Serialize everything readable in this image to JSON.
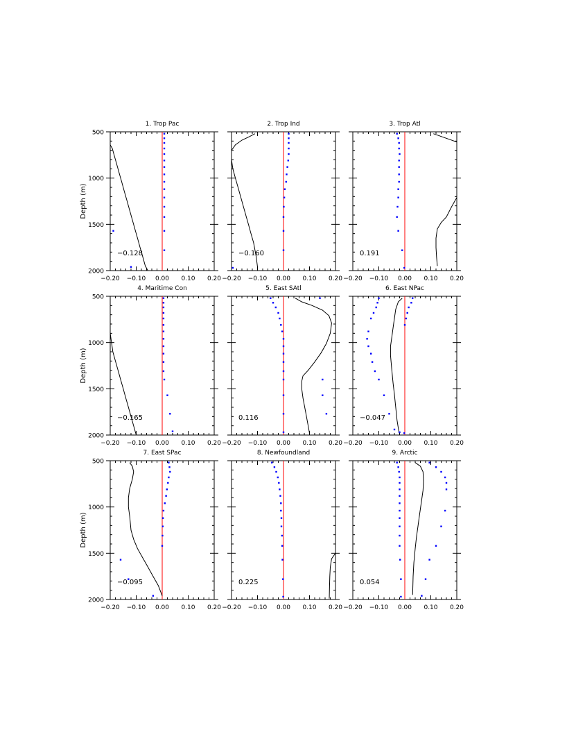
{
  "chart_data": {
    "type": "line",
    "layout": "3x3 small multiples",
    "ylabel": "Depth (m)",
    "y_reversed": true,
    "ylim": [
      500,
      2000
    ],
    "xlim": [
      -0.2,
      0.2
    ],
    "y_ticks": [
      "500",
      "1000",
      "1500",
      "2000"
    ],
    "x_ticks": [
      "−0.20",
      "−0.10",
      "0.00",
      "0.10",
      "0.20"
    ],
    "colors": {
      "line": "#000000",
      "dots": "#0000ff",
      "zero_line": "#ff0000"
    },
    "panels": [
      {
        "title": "1. Trop Pac",
        "value_label": "−0.128",
        "line": {
          "x": [
            -0.2,
            -0.192,
            -0.185,
            -0.175,
            -0.165,
            -0.155,
            -0.145,
            -0.135,
            -0.125,
            -0.115,
            -0.105,
            -0.095,
            -0.085,
            -0.075,
            -0.065,
            -0.055
          ],
          "y": [
            640,
            680,
            750,
            850,
            950,
            1050,
            1150,
            1250,
            1350,
            1450,
            1550,
            1650,
            1750,
            1850,
            1950,
            2000
          ]
        },
        "dots": {
          "x": [
            0.008,
            0.008,
            0.008,
            0.008,
            0.008,
            0.008,
            0.008,
            0.008,
            0.008,
            0.008,
            0.008,
            0.008,
            0.008,
            0.008,
            0.008,
            -0.188,
            -0.12
          ],
          "y": [
            520,
            570,
            620,
            680,
            740,
            810,
            880,
            960,
            1040,
            1120,
            1210,
            1310,
            1420,
            1570,
            1780,
            1570,
            1960
          ]
        }
      },
      {
        "title": "2. Trop Ind",
        "value_label": "−0.160",
        "line": {
          "x": [
            -0.11,
            -0.13,
            -0.16,
            -0.185,
            -0.2,
            -0.2,
            -0.195,
            -0.185,
            -0.175,
            -0.165,
            -0.155,
            -0.145,
            -0.135,
            -0.125,
            -0.115,
            -0.105,
            -0.1
          ],
          "y": [
            520,
            550,
            590,
            640,
            700,
            800,
            900,
            1000,
            1100,
            1200,
            1300,
            1400,
            1500,
            1600,
            1700,
            1850,
            1960
          ]
        },
        "dots": {
          "x": [
            0.02,
            0.02,
            0.02,
            0.02,
            0.02,
            0.018,
            0.015,
            0.012,
            0.01,
            0.005,
            0.003,
            0.001,
            0.0,
            0.0,
            0.0,
            -0.195
          ],
          "y": [
            520,
            570,
            620,
            680,
            740,
            810,
            880,
            960,
            1040,
            1120,
            1210,
            1310,
            1420,
            1570,
            1780,
            1970
          ]
        }
      },
      {
        "title": "3. Trop Atl",
        "value_label": "0.191",
        "line": {
          "x": [
            0.11,
            0.14,
            0.17,
            0.2,
            0.2,
            0.18,
            0.16,
            0.14,
            0.125,
            0.12,
            0.12,
            0.122,
            0.125
          ],
          "y": [
            520,
            550,
            580,
            610,
            1210,
            1310,
            1420,
            1480,
            1550,
            1650,
            1750,
            1850,
            1950
          ]
        },
        "dots": {
          "x": [
            -0.03,
            -0.025,
            -0.022,
            -0.022,
            -0.02,
            -0.022,
            -0.022,
            -0.022,
            -0.022,
            -0.025,
            -0.025,
            -0.028,
            -0.03,
            -0.025,
            -0.01,
            -0.002
          ],
          "y": [
            520,
            570,
            620,
            680,
            740,
            810,
            880,
            960,
            1040,
            1120,
            1210,
            1310,
            1420,
            1570,
            1780,
            1970
          ]
        }
      },
      {
        "title": "4. Maritime Con",
        "value_label": "−0.165",
        "line": {
          "x": [
            -0.2,
            -0.195,
            -0.19,
            -0.18,
            -0.17,
            -0.16,
            -0.15,
            -0.14,
            -0.13,
            -0.12,
            -0.11,
            -0.1
          ],
          "y": [
            900,
            1000,
            1100,
            1200,
            1300,
            1400,
            1500,
            1600,
            1700,
            1800,
            1900,
            2000
          ]
        },
        "dots": {
          "x": [
            0.005,
            0.005,
            0.005,
            0.005,
            0.005,
            0.005,
            0.005,
            0.005,
            0.005,
            0.005,
            0.005,
            0.005,
            0.008,
            0.02,
            0.03,
            0.04
          ],
          "y": [
            520,
            570,
            620,
            680,
            740,
            810,
            880,
            960,
            1040,
            1120,
            1210,
            1310,
            1400,
            1570,
            1770,
            1960
          ]
        }
      },
      {
        "title": "5. East SAtl",
        "value_label": "0.116",
        "line": {
          "x": [
            0.045,
            0.07,
            0.11,
            0.15,
            0.175,
            0.185,
            0.18,
            0.165,
            0.145,
            0.12,
            0.095,
            0.075,
            0.07,
            0.07,
            0.075,
            0.085,
            0.095,
            0.1
          ],
          "y": [
            520,
            560,
            600,
            650,
            710,
            790,
            900,
            1010,
            1110,
            1210,
            1300,
            1360,
            1420,
            1500,
            1600,
            1750,
            1900,
            1980
          ]
        },
        "dots": {
          "x": [
            -0.05,
            -0.04,
            -0.03,
            -0.02,
            -0.015,
            -0.01,
            -0.005,
            0.0,
            0.0,
            0.0,
            0.0,
            0.0,
            0.0,
            0.0,
            0.0,
            0.0,
            0.14,
            0.15,
            0.15,
            0.165
          ],
          "y": [
            520,
            570,
            620,
            680,
            740,
            810,
            880,
            960,
            1040,
            1120,
            1210,
            1310,
            1400,
            1570,
            1770,
            1970,
            520,
            1400,
            1570,
            1770
          ]
        }
      },
      {
        "title": "6. East NPac",
        "value_label": "−0.047",
        "line": {
          "x": [
            -0.01,
            -0.025,
            -0.035,
            -0.04,
            -0.045,
            -0.05,
            -0.055,
            -0.055,
            -0.05,
            -0.045,
            -0.04,
            -0.035,
            -0.03,
            -0.022
          ],
          "y": [
            520,
            560,
            640,
            740,
            840,
            940,
            1040,
            1140,
            1300,
            1440,
            1560,
            1700,
            1840,
            1980
          ]
        },
        "dots": {
          "x": [
            -0.1,
            -0.105,
            -0.11,
            -0.12,
            -0.13,
            -0.14,
            -0.145,
            -0.14,
            -0.13,
            -0.125,
            -0.115,
            -0.1,
            -0.08,
            -0.06,
            -0.04,
            -0.02,
            -0.002,
            0.03,
            0.025,
            0.015,
            0.01,
            0.005,
            0.0
          ],
          "y": [
            520,
            570,
            620,
            680,
            740,
            880,
            960,
            1040,
            1120,
            1210,
            1310,
            1400,
            1570,
            1770,
            1940,
            1970,
            1980,
            520,
            570,
            620,
            680,
            740,
            810
          ]
        }
      },
      {
        "title": "7. East SPac",
        "value_label": "−0.095",
        "line": {
          "x": [
            -0.125,
            -0.115,
            -0.11,
            -0.115,
            -0.125,
            -0.13,
            -0.13,
            -0.125,
            -0.12,
            -0.11,
            -0.095,
            -0.075,
            -0.055,
            -0.035,
            -0.015,
            0.0
          ],
          "y": [
            520,
            560,
            620,
            700,
            800,
            900,
            1000,
            1100,
            1250,
            1350,
            1450,
            1550,
            1650,
            1750,
            1850,
            1960
          ]
        },
        "dots": {
          "x": [
            0.025,
            0.028,
            0.03,
            0.025,
            0.022,
            0.018,
            0.015,
            0.01,
            0.005,
            0.003,
            0.002,
            0.001,
            0.0,
            -0.16,
            -0.13,
            -0.035
          ],
          "y": [
            520,
            570,
            620,
            680,
            740,
            810,
            880,
            960,
            1040,
            1120,
            1210,
            1310,
            1420,
            1570,
            1780,
            1960
          ]
        }
      },
      {
        "title": "8. Newfoundland",
        "value_label": "0.225",
        "line": {
          "x": [
            0.2,
            0.185,
            0.18,
            0.178,
            0.177,
            0.176
          ],
          "y": [
            1500,
            1560,
            1650,
            1750,
            1860,
            1990
          ]
        },
        "dots": {
          "x": [
            -0.045,
            -0.035,
            -0.028,
            -0.022,
            -0.018,
            -0.015,
            -0.012,
            -0.01,
            -0.01,
            -0.008,
            -0.008,
            -0.006,
            -0.005,
            -0.004,
            -0.002,
            -0.001
          ],
          "y": [
            520,
            570,
            620,
            680,
            740,
            810,
            880,
            960,
            1040,
            1120,
            1210,
            1310,
            1420,
            1570,
            1780,
            1970
          ]
        }
      },
      {
        "title": "9. Arctic",
        "value_label": "0.054",
        "line": {
          "x": [
            0.04,
            0.06,
            0.07,
            0.072,
            0.07,
            0.065,
            0.06,
            0.055,
            0.05,
            0.045,
            0.04,
            0.035,
            0.032,
            0.03
          ],
          "y": [
            520,
            560,
            620,
            720,
            820,
            920,
            1020,
            1120,
            1220,
            1320,
            1450,
            1600,
            1750,
            1950
          ]
        },
        "dots": {
          "x": [
            -0.03,
            -0.025,
            -0.022,
            -0.02,
            -0.02,
            -0.02,
            -0.02,
            -0.02,
            -0.02,
            -0.02,
            -0.02,
            -0.02,
            -0.02,
            -0.018,
            -0.015,
            -0.015,
            0.095,
            0.12,
            0.14,
            0.155,
            0.16,
            0.16,
            0.155,
            0.14,
            0.12,
            0.095,
            0.08,
            0.065
          ],
          "y": [
            520,
            570,
            620,
            680,
            740,
            810,
            880,
            960,
            1040,
            1120,
            1210,
            1310,
            1420,
            1570,
            1780,
            1970,
            520,
            570,
            620,
            680,
            740,
            810,
            1040,
            1210,
            1420,
            1570,
            1780,
            1960
          ]
        }
      }
    ]
  }
}
